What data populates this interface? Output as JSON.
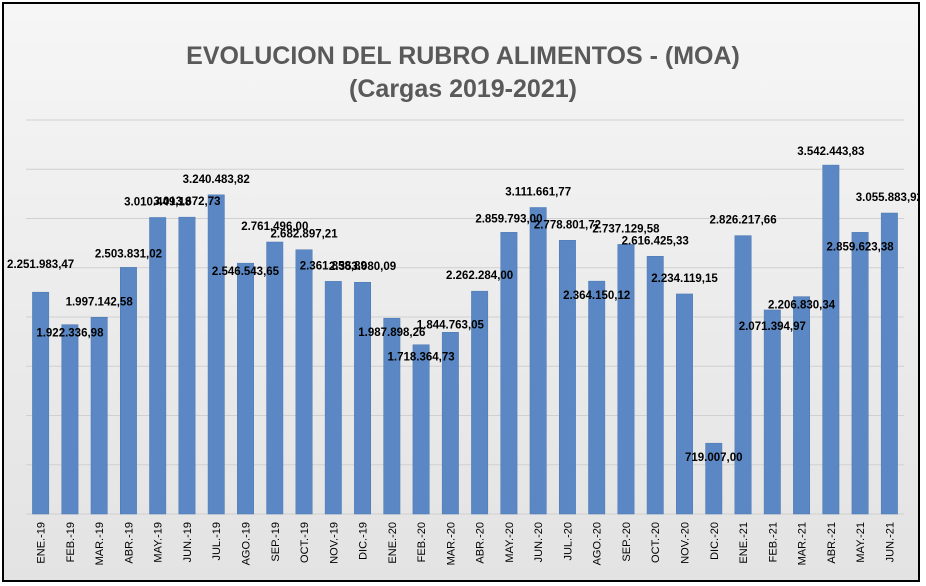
{
  "chart_data": {
    "type": "bar",
    "title_line1": "EVOLUCION DEL RUBRO ALIMENTOS - (MOA)",
    "title_line2": "(Cargas 2019-2021)",
    "categories": [
      "ENE.-19",
      "FEB.-19",
      "MAR.-19",
      "ABR.-19",
      "MAY.-19",
      "JUN.-19",
      "JUL.-19",
      "AGO.-19",
      "SEP.-19",
      "OCT.-19",
      "NOV.-19",
      "DIC.-19",
      "ENE.-20",
      "FEB.-20",
      "MAR.-20",
      "ABR.-20",
      "MAY.-20",
      "JUN.-20",
      "JUL.-20",
      "AGO.-20",
      "SEP.-20",
      "OCT.-20",
      "NOV.-20",
      "DIC.-20",
      "ENE.-21",
      "FEB.-21",
      "MAR.-21",
      "ABR.-21",
      "MAY.-21",
      "JUN.-21"
    ],
    "values": [
      2251983.47,
      1922336.98,
      1997142.58,
      2503831.02,
      3010449.18,
      3013672.73,
      3240483.82,
      2546543.65,
      2761496.0,
      2682897.21,
      2361858.89,
      2353080.09,
      1987898.26,
      1718364.73,
      1844763.05,
      2262284.0,
      2859793.0,
      3111661.77,
      2778801.72,
      2364150.12,
      2737129.58,
      2616425.33,
      2234119.15,
      719007.0,
      2826217.66,
      2071394.97,
      2206830.34,
      3542443.83,
      2859623.38,
      3055883.92
    ],
    "labels": [
      "2.251.983,47",
      "1.922.336,98",
      "1.997.142,58",
      "2.503.831,02",
      "3.010.449,18",
      "3.013.672,73",
      "3.240.483,82",
      "2.546.543,65",
      "2.761.496,00",
      "2.682.897,21",
      "2.361.858,89",
      "2.353.080,09",
      "1.987.898,26",
      "1.718.364,73",
      "1.844.763,05",
      "2.262.284,00",
      "2.859.793,00",
      "3.111.661,77",
      "2.778.801,72",
      "2.364.150,12",
      "2.737.129,58",
      "2.616.425,33",
      "2.234.119,15",
      "719.007,00",
      "2.826.217,66",
      "2.071.394,97",
      "2.206.830,34",
      "3.542.443,83",
      "2.859.623,38",
      "3.055.883,92"
    ],
    "ylim": [
      0,
      4000000
    ],
    "grid": true,
    "bar_color": "#5b88c4",
    "xlabel": "",
    "ylabel": ""
  }
}
